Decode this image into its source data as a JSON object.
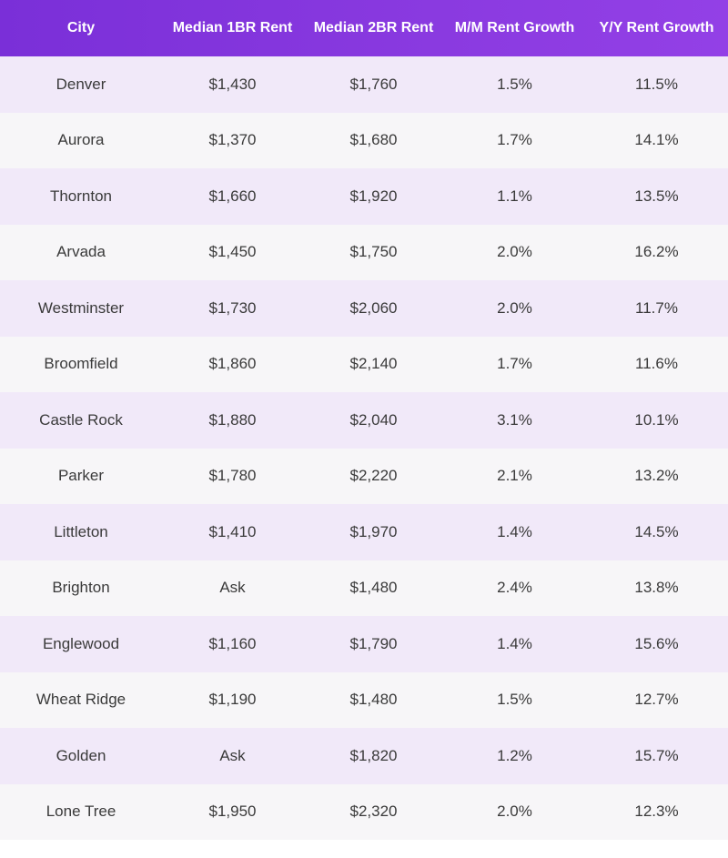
{
  "table": {
    "headers": [
      "City",
      "Median 1BR Rent",
      "Median 2BR Rent",
      "M/M Rent Growth",
      "Y/Y Rent Growth"
    ],
    "rows": [
      [
        "Denver",
        "$1,430",
        "$1,760",
        "1.5%",
        "11.5%"
      ],
      [
        "Aurora",
        "$1,370",
        "$1,680",
        "1.7%",
        "14.1%"
      ],
      [
        "Thornton",
        "$1,660",
        "$1,920",
        "1.1%",
        "13.5%"
      ],
      [
        "Arvada",
        "$1,450",
        "$1,750",
        "2.0%",
        "16.2%"
      ],
      [
        "Westminster",
        "$1,730",
        "$2,060",
        "2.0%",
        "11.7%"
      ],
      [
        "Broomfield",
        "$1,860",
        "$2,140",
        "1.7%",
        "11.6%"
      ],
      [
        "Castle Rock",
        "$1,880",
        "$2,040",
        "3.1%",
        "10.1%"
      ],
      [
        "Parker",
        "$1,780",
        "$2,220",
        "2.1%",
        "13.2%"
      ],
      [
        "Littleton",
        "$1,410",
        "$1,970",
        "1.4%",
        "14.5%"
      ],
      [
        "Brighton",
        "Ask",
        "$1,480",
        "2.4%",
        "13.8%"
      ],
      [
        "Englewood",
        "$1,160",
        "$1,790",
        "1.4%",
        "15.6%"
      ],
      [
        "Wheat Ridge",
        "$1,190",
        "$1,480",
        "1.5%",
        "12.7%"
      ],
      [
        "Golden",
        "Ask",
        "$1,820",
        "1.2%",
        "15.7%"
      ],
      [
        "Lone Tree",
        "$1,950",
        "$2,320",
        "2.0%",
        "12.3%"
      ]
    ]
  },
  "colors": {
    "header_bg": "#8a3ae0",
    "header_text": "#ffffff",
    "row_odd_bg": "#f1e9f9",
    "row_even_bg": "#f7f6f8",
    "cell_text": "#3a3a3a"
  }
}
